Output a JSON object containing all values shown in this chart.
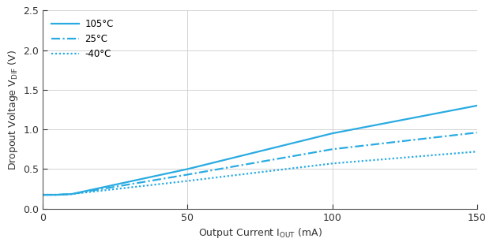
{
  "xlabel_main": "Output Current I",
  "xlabel_unit": " (mA)",
  "ylabel_main": "Dropout Voltage V",
  "ylabel_unit": " (V)",
  "xlim": [
    0,
    150
  ],
  "ylim": [
    0,
    2.5
  ],
  "xticks": [
    0,
    50,
    100,
    150
  ],
  "yticks": [
    0,
    0.5,
    1.0,
    1.5,
    2.0,
    2.5
  ],
  "line_color": "#29ABE2",
  "series": [
    {
      "label": "105°C",
      "linestyle": "solid",
      "x": [
        0,
        5,
        10,
        50,
        100,
        150
      ],
      "y": [
        0.175,
        0.175,
        0.185,
        0.5,
        0.95,
        1.3
      ]
    },
    {
      "label": "25°C",
      "linestyle": "dashdot",
      "x": [
        0,
        5,
        10,
        50,
        100,
        150
      ],
      "y": [
        0.175,
        0.175,
        0.185,
        0.43,
        0.75,
        0.96
      ]
    },
    {
      "label": "-40°C",
      "linestyle": "dotted",
      "x": [
        0,
        5,
        10,
        50,
        100,
        150
      ],
      "y": [
        0.175,
        0.175,
        0.185,
        0.35,
        0.57,
        0.72
      ]
    }
  ],
  "legend_loc": "upper left",
  "grid_color": "#cccccc",
  "background_color": "#ffffff",
  "line_width": 1.6
}
